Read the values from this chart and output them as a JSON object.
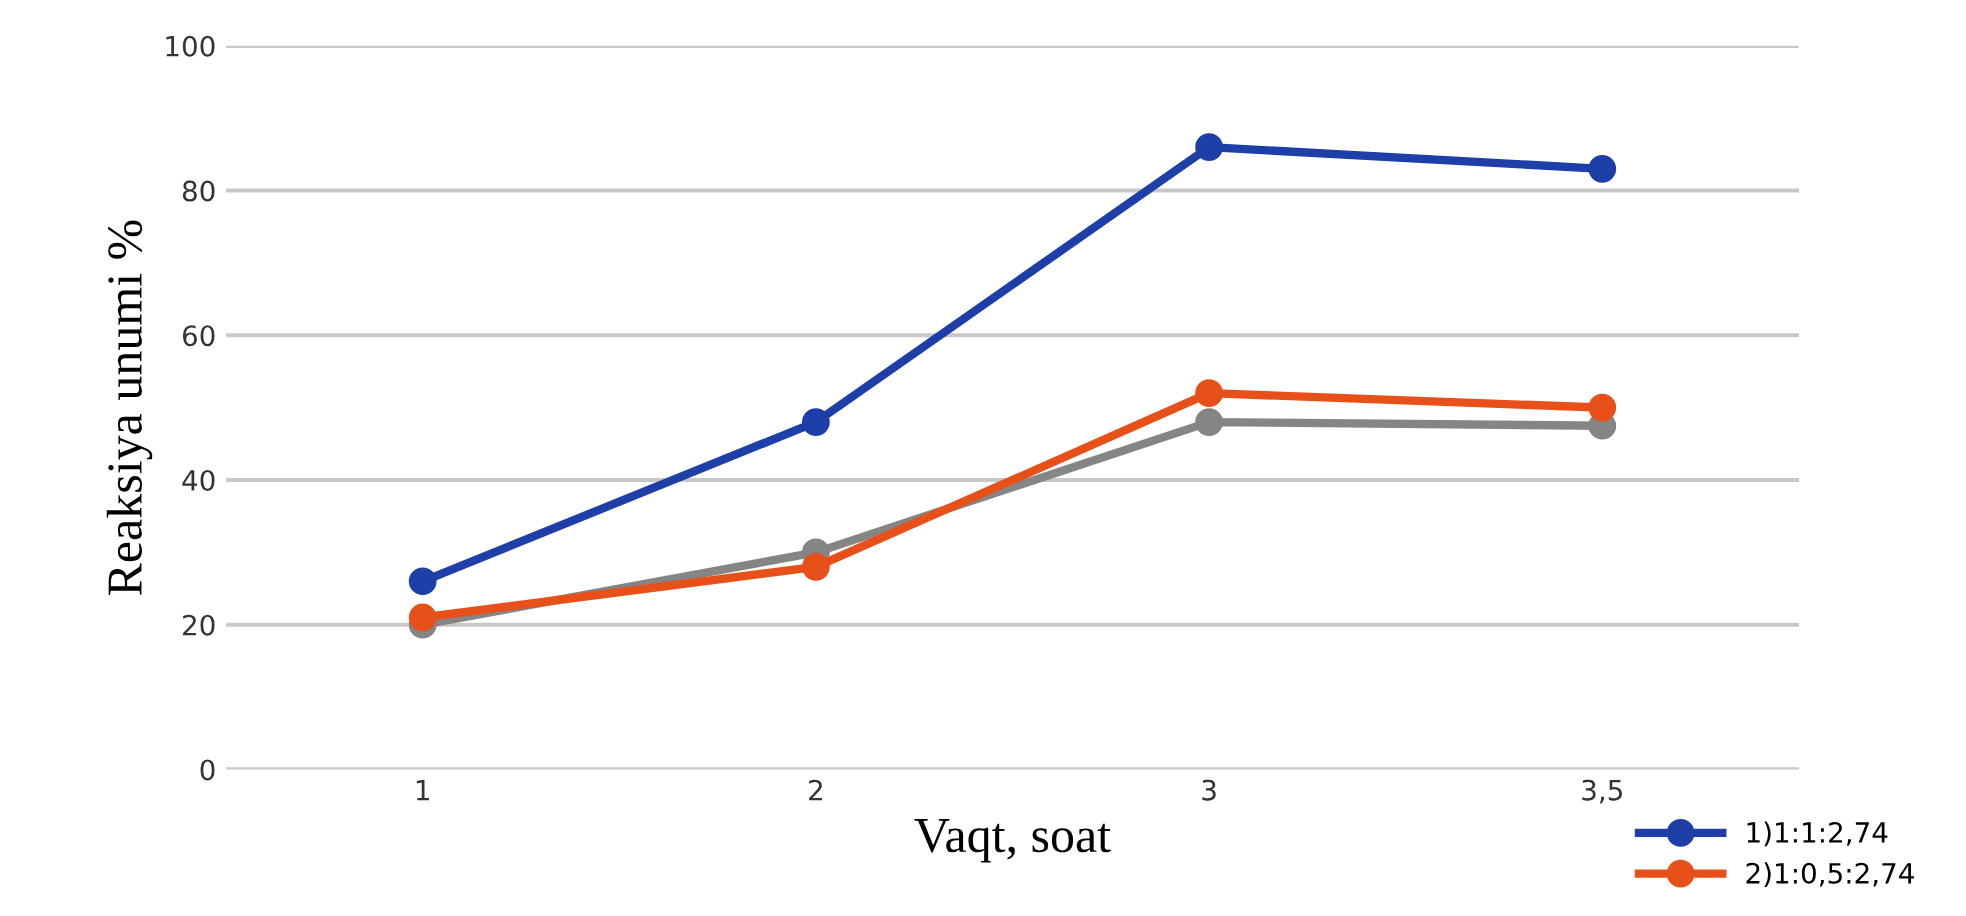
{
  "chart_data": {
    "type": "line",
    "xlabel": "Vaqt, soat",
    "ylabel": "Reaksiya unumi %",
    "categories": [
      "1",
      "2",
      "3",
      "3,5"
    ],
    "series": [
      {
        "name": "1)1:1:2,74",
        "color": "#1f3fa8",
        "values": [
          26,
          48,
          86,
          83
        ]
      },
      {
        "name": "2)1:0,5:2,74",
        "color": "#e8501a",
        "values": [
          21,
          28,
          52,
          50
        ]
      },
      {
        "color": "#858585",
        "values": [
          20,
          30,
          48,
          47.5
        ]
      }
    ],
    "ylim": [
      0,
      100
    ],
    "yticks": [
      0,
      20,
      40,
      60,
      80,
      100
    ],
    "grid": "y",
    "legend": "bottom right",
    "marker": "circle",
    "line_style": "solid"
  }
}
